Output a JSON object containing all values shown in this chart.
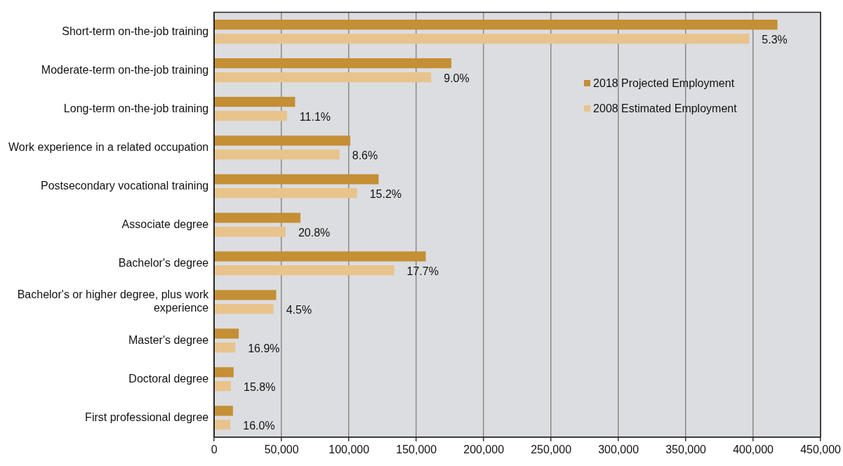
{
  "chart_data": {
    "type": "bar",
    "orientation": "horizontal",
    "categories": [
      "Short-term on-the-job training",
      "Moderate-term on-the-job training",
      "Long-term on-the-job training",
      "Work experience in a related occupation",
      "Postsecondary vocational training",
      "Associate degree",
      "Bachelor's degree",
      "Bachelor's or higher degree, plus work experience",
      "Master's degree",
      "Doctoral degree",
      "First professional degree"
    ],
    "series": [
      {
        "name": "2018 Projected Employment",
        "color": "#c48f35",
        "values": [
          418000,
          176000,
          60000,
          101000,
          122000,
          64000,
          157000,
          46000,
          18200,
          14400,
          13900
        ]
      },
      {
        "name": "2008 Estimated Employment",
        "color": "#e8c48c",
        "values": [
          397000,
          161000,
          54000,
          93000,
          106000,
          53000,
          133500,
          44000,
          15600,
          12400,
          12000
        ]
      }
    ],
    "annotations": [
      {
        "text": "5.3%",
        "x": 397000,
        "y": "Short-term on-the-job training"
      },
      {
        "text": "9.0%",
        "x": 161000,
        "y": "Moderate-term on-the-job training"
      },
      {
        "text": "11.1%",
        "x": 54000,
        "y": "Long-term on-the-job training"
      },
      {
        "text": "8.6%",
        "x": 93000,
        "y": "Work experience in a related occupation"
      },
      {
        "text": "15.2%",
        "x": 106000,
        "y": "Postsecondary vocational training"
      },
      {
        "text": "20.8%",
        "x": 53000,
        "y": "Associate degree"
      },
      {
        "text": "17.7%",
        "x": 133500,
        "y": "Bachelor's degree"
      },
      {
        "text": "4.5%",
        "x": 44000,
        "y": "Bachelor's or higher degree, plus work experience"
      },
      {
        "text": "16.9%",
        "x": 15600,
        "y": "Master's degree"
      },
      {
        "text": "15.8%",
        "x": 12400,
        "y": "Doctoral degree"
      },
      {
        "text": "16.0%",
        "x": 12000,
        "y": "First professional degree"
      }
    ],
    "xlim": [
      0,
      450000
    ],
    "xticks": [
      0,
      {
        "value": 50000,
        "label": "50,000"
      },
      {
        "value": 100000,
        "label": "100,000"
      },
      {
        "value": 150000,
        "label": "150,000"
      },
      {
        "value": 200000,
        "label": "200,000"
      },
      {
        "value": 250000,
        "label": "250,000"
      },
      {
        "value": 300000,
        "label": "300,000"
      },
      {
        "value": 350000,
        "label": "350,000"
      },
      {
        "value": 400000,
        "label": "400,000"
      },
      {
        "value": 450000,
        "label": "450,000"
      }
    ],
    "grid": "x",
    "legend": "top right"
  }
}
